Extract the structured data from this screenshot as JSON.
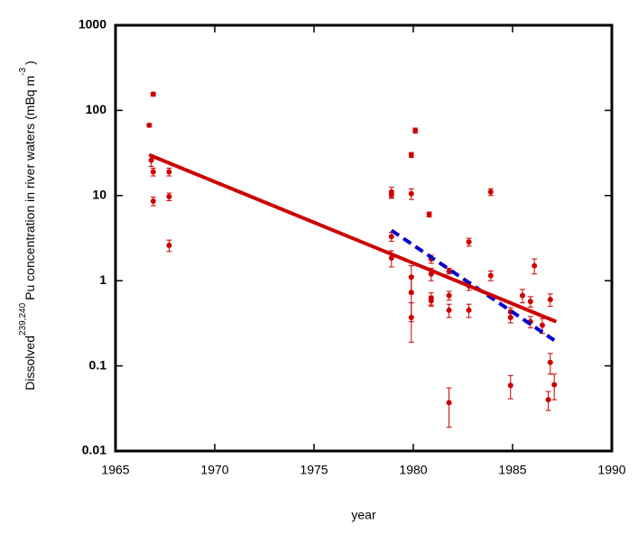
{
  "chart_data": {
    "type": "scatter",
    "log_y": true,
    "xlabel": "year",
    "ylabel": [
      "Dissolved",
      "239,240",
      "Pu concentration in river waters (mBq m",
      "-3",
      ")"
    ],
    "xlim": [
      1965,
      1990
    ],
    "xticks": [
      1965,
      1970,
      1975,
      1980,
      1985,
      1990
    ],
    "ylim": [
      0.01,
      1000
    ],
    "yticks": [
      0.01,
      0.1,
      1,
      10,
      100,
      1000
    ],
    "series": [
      {
        "style": "points",
        "color": "#cc0000",
        "x": [
          1966.7,
          1966.9,
          1966.8,
          1966.9,
          1966.9,
          1967.7,
          1967.7,
          1967.7,
          1978.9,
          1978.9,
          1978.9,
          1978.9,
          1979.9,
          1979.9,
          1980.1,
          1980.8,
          1980.9,
          1980.9,
          1980.9,
          1980.9,
          1979.9,
          1979.9,
          1979.9,
          1981.8,
          1981.8,
          1981.8,
          1981.8,
          1982.8,
          1982.8,
          1982.8,
          1983.9,
          1983.9,
          1984.9,
          1984.9,
          1984.9,
          1985.5,
          1985.9,
          1985.9,
          1986.1,
          1986.5,
          1986.9,
          1986.9,
          1986.8,
          1987.1
        ],
        "values": [
          67,
          155,
          26,
          19,
          8.6,
          19,
          9.7,
          2.6,
          11,
          10.3,
          3.3,
          1.85,
          30,
          10.5,
          58,
          6,
          1.8,
          1.2,
          0.62,
          0.58,
          1.1,
          0.73,
          0.37,
          1.3,
          0.67,
          0.45,
          0.037,
          2.85,
          0.87,
          0.45,
          11,
          1.15,
          0.43,
          0.37,
          0.059,
          0.67,
          0.57,
          0.33,
          1.5,
          0.3,
          0.6,
          0.11,
          0.04,
          0.06
        ],
        "errors": [
          3,
          8,
          4,
          2,
          1,
          2,
          1,
          0.4,
          1.5,
          1,
          0.4,
          0.4,
          2,
          1.5,
          4,
          0.4,
          0.2,
          0.2,
          0.1,
          0.08,
          0.4,
          0.4,
          0.18,
          0.1,
          0.08,
          0.08,
          0.018,
          0.3,
          0.1,
          0.08,
          1,
          0.15,
          0.05,
          0.05,
          0.018,
          0.12,
          0.08,
          0.05,
          0.3,
          0.06,
          0.1,
          0.03,
          0.01,
          0.02
        ]
      },
      {
        "style": "line",
        "color": "#0000cc",
        "dashed": true,
        "x": [
          1978.9,
          1987.1
        ],
        "values": [
          3.9,
          0.2
        ]
      },
      {
        "style": "line",
        "color": "#cc0000",
        "dashed": false,
        "x": [
          1966.7,
          1987.2
        ],
        "values": [
          30,
          0.33
        ]
      }
    ]
  }
}
